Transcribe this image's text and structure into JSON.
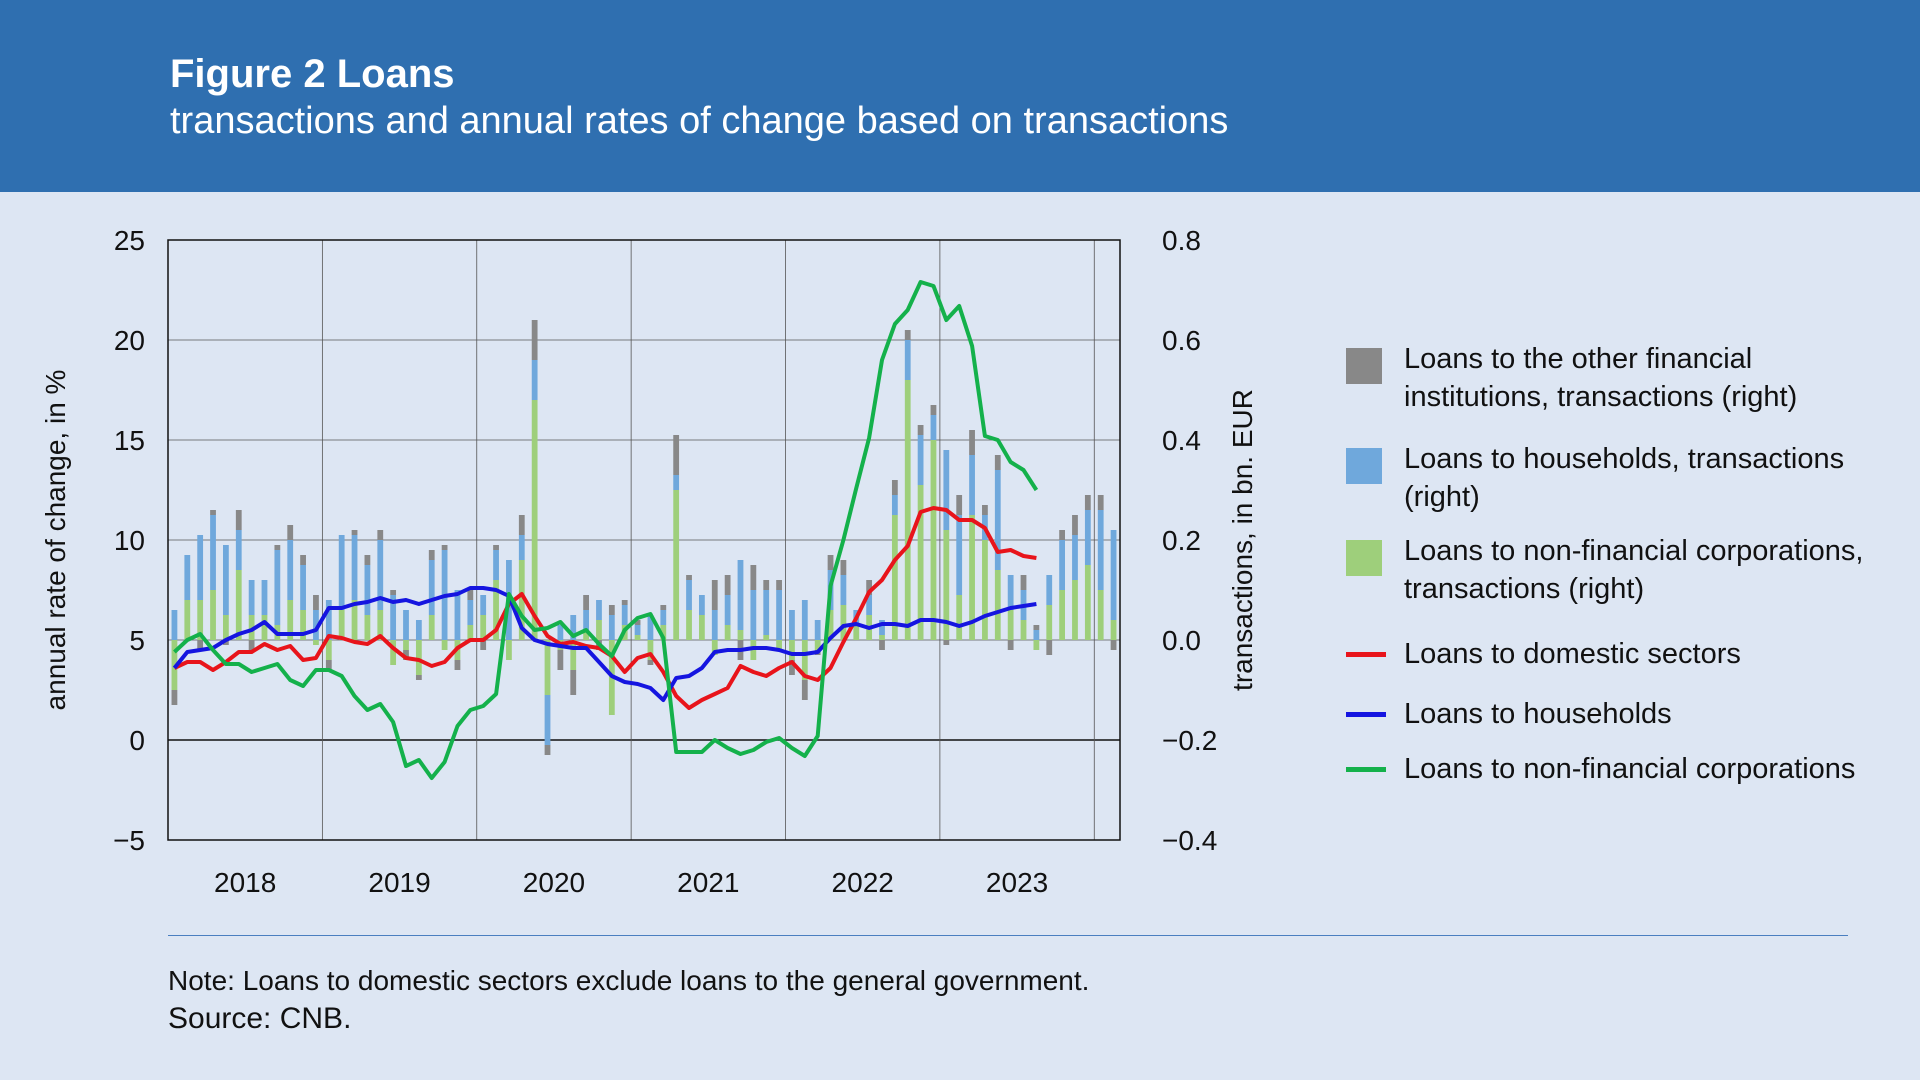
{
  "header": {
    "title": "Figure 2 Loans",
    "subtitle": "transactions and annual rates of change based on transactions"
  },
  "colors": {
    "header_bg": "#2f6fb0",
    "background": "#dde6f3",
    "other_fin": "#888888",
    "households_bar": "#6fa8dc",
    "nfc_bar": "#9ecf7b",
    "domestic_line": "#e8141b",
    "households_line": "#1515e0",
    "nfc_line": "#14b14b"
  },
  "chart_data": {
    "type": "bar+line",
    "ylabel_left": "annual rate of change, in %",
    "ylabel_right": "transactions, in bn. EUR",
    "ylim_left": [
      -5,
      25
    ],
    "yticks_left": [
      "25",
      "20",
      "15",
      "10",
      "5",
      "0",
      "−5"
    ],
    "ylim_right": [
      -0.4,
      0.8
    ],
    "yticks_right": [
      "0.8",
      "0.6",
      "0.4",
      "0.2",
      "0.0",
      "−0.2",
      "−0.4"
    ],
    "x_labels": [
      "2018",
      "2019",
      "2020",
      "2021",
      "2022",
      "2023"
    ],
    "grid": true,
    "legend_position": "right",
    "months_start": "2018-01",
    "bar_series": [
      {
        "name": "Loans to non-financial corporations, transactions (right)",
        "color": "#9ecf7b",
        "values": [
          -0.1,
          0.08,
          0.08,
          0.1,
          0.05,
          0.14,
          0.05,
          0.05,
          0.03,
          0.08,
          0.06,
          -0.01,
          -0.04,
          0.06,
          0.08,
          0.05,
          0.06,
          -0.05,
          -0.02,
          -0.07,
          0.05,
          -0.02,
          -0.04,
          0.03,
          0.05,
          0.12,
          -0.04,
          0.16,
          0.48,
          -0.11,
          -0.02,
          -0.06,
          0.02,
          0.04,
          -0.15,
          0.03,
          0.01,
          -0.04,
          0.03,
          0.3,
          0.06,
          0.05,
          -0.03,
          0.03,
          0.02,
          -0.04,
          0.01,
          -0.02,
          -0.04,
          -0.08,
          -0.02,
          0.06,
          0.07,
          0.03,
          0.05,
          0.01,
          0.25,
          0.52,
          0.31,
          0.4,
          0.22,
          0.09,
          0.25,
          0.2,
          0.14,
          0.06,
          0.04,
          -0.02,
          0.07,
          0.1,
          0.12,
          0.15,
          0.1,
          0.04
        ]
      },
      {
        "name": "Loans to households, transactions (right)",
        "color": "#6fa8dc",
        "values": [
          0.06,
          0.09,
          0.13,
          0.15,
          0.14,
          0.08,
          0.07,
          0.07,
          0.15,
          0.12,
          0.09,
          0.06,
          0.08,
          0.15,
          0.13,
          0.1,
          0.14,
          0.09,
          0.06,
          0.04,
          0.11,
          0.18,
          0.1,
          0.05,
          0.04,
          0.06,
          0.16,
          0.05,
          0.08,
          -0.1,
          0.03,
          0.05,
          0.04,
          0.04,
          0.05,
          0.04,
          0.02,
          0.05,
          0.03,
          0.03,
          0.06,
          0.04,
          0.06,
          0.06,
          0.14,
          0.1,
          0.09,
          0.1,
          0.06,
          0.08,
          0.04,
          0.08,
          0.06,
          0.03,
          0.04,
          0.03,
          0.04,
          0.08,
          0.1,
          0.05,
          0.16,
          0.16,
          0.12,
          0.05,
          0.2,
          0.07,
          0.06,
          0.02,
          0.06,
          0.1,
          0.09,
          0.11,
          0.16,
          0.18
        ]
      },
      {
        "name": "Loans to the other financial institutions, transactions (right)",
        "color": "#888888",
        "values": [
          -0.03,
          0.0,
          -0.02,
          0.01,
          -0.01,
          0.04,
          -0.02,
          0.0,
          0.01,
          0.03,
          0.02,
          0.03,
          -0.02,
          0.0,
          0.01,
          0.02,
          0.02,
          0.01,
          -0.02,
          -0.01,
          0.02,
          0.01,
          -0.02,
          0.02,
          -0.02,
          0.01,
          0.0,
          0.04,
          0.08,
          -0.02,
          -0.04,
          -0.05,
          0.03,
          -0.02,
          0.02,
          0.01,
          0.01,
          -0.01,
          0.01,
          0.08,
          0.01,
          0.0,
          0.06,
          0.04,
          -0.04,
          0.05,
          0.02,
          0.02,
          -0.03,
          -0.04,
          -0.01,
          0.03,
          0.03,
          0.0,
          0.03,
          -0.02,
          0.03,
          0.02,
          0.02,
          0.02,
          -0.01,
          0.04,
          0.05,
          0.02,
          0.03,
          -0.02,
          0.03,
          0.01,
          -0.03,
          0.02,
          0.04,
          0.03,
          0.03,
          -0.02
        ]
      }
    ],
    "line_series": [
      {
        "name": "Loans to domestic sectors",
        "color": "#e8141b",
        "values": [
          3.6,
          3.9,
          3.9,
          3.5,
          3.9,
          4.4,
          4.4,
          4.8,
          4.5,
          4.7,
          4.0,
          4.1,
          5.2,
          5.1,
          4.9,
          4.8,
          5.2,
          4.6,
          4.1,
          4.0,
          3.7,
          3.9,
          4.6,
          5.0,
          5.0,
          5.5,
          6.8,
          7.3,
          6.2,
          5.2,
          4.8,
          4.9,
          4.7,
          4.6,
          4.2,
          3.4,
          4.1,
          4.3,
          3.4,
          2.2,
          1.6,
          2.0,
          2.3,
          2.6,
          3.7,
          3.4,
          3.2,
          3.6,
          3.9,
          3.2,
          3.0,
          3.6,
          4.9,
          6.1,
          7.4,
          8.0,
          9.0,
          9.7,
          11.4,
          11.6,
          11.5,
          11.0,
          11.0,
          10.6,
          9.4,
          9.5,
          9.2,
          9.1
        ]
      },
      {
        "name": "Loans to households",
        "color": "#1515e0",
        "values": [
          3.6,
          4.4,
          4.5,
          4.6,
          5.0,
          5.3,
          5.5,
          5.9,
          5.3,
          5.3,
          5.3,
          5.5,
          6.6,
          6.6,
          6.8,
          6.9,
          7.1,
          6.9,
          7.0,
          6.8,
          7.0,
          7.2,
          7.3,
          7.6,
          7.6,
          7.5,
          7.2,
          5.6,
          5.0,
          4.8,
          4.7,
          4.6,
          4.6,
          3.9,
          3.2,
          2.9,
          2.8,
          2.6,
          2.0,
          3.1,
          3.2,
          3.6,
          4.4,
          4.5,
          4.5,
          4.6,
          4.6,
          4.5,
          4.3,
          4.3,
          4.4,
          5.1,
          5.7,
          5.8,
          5.6,
          5.8,
          5.8,
          5.7,
          6.0,
          6.0,
          5.9,
          5.7,
          5.9,
          6.2,
          6.4,
          6.6,
          6.7,
          6.8
        ]
      },
      {
        "name": "Loans to non-financial corporations",
        "color": "#14b14b",
        "values": [
          4.4,
          5.0,
          5.3,
          4.5,
          3.8,
          3.8,
          3.4,
          3.6,
          3.8,
          3.0,
          2.7,
          3.5,
          3.5,
          3.2,
          2.2,
          1.5,
          1.8,
          0.9,
          -1.3,
          -1.0,
          -1.9,
          -1.1,
          0.7,
          1.5,
          1.7,
          2.3,
          7.3,
          6.2,
          5.5,
          5.6,
          5.9,
          5.2,
          5.5,
          4.8,
          4.2,
          5.5,
          6.1,
          6.3,
          5.1,
          -0.6,
          -0.6,
          -0.6,
          0.0,
          -0.4,
          -0.7,
          -0.5,
          -0.1,
          0.1,
          -0.4,
          -0.8,
          0.2,
          7.7,
          10.0,
          12.6,
          15.1,
          19.0,
          20.8,
          21.5,
          22.9,
          22.7,
          21.0,
          21.7,
          19.7,
          15.2,
          15.0,
          13.9,
          13.5,
          12.5
        ]
      }
    ]
  },
  "legend": [
    {
      "label": "Loans to the other financial institutions, transactions (right)",
      "type": "box",
      "color": "#888888"
    },
    {
      "label": "Loans to households, transactions (right)",
      "type": "box",
      "color": "#6fa8dc"
    },
    {
      "label": "Loans to non-financial corporations, transactions (right)",
      "type": "box",
      "color": "#9ecf7b"
    },
    {
      "label": "Loans to domestic sectors",
      "type": "line",
      "color": "#e8141b"
    },
    {
      "label": "Loans to households",
      "type": "line",
      "color": "#1515e0"
    },
    {
      "label": "Loans to non-financial corporations",
      "type": "line",
      "color": "#14b14b"
    }
  ],
  "footer": {
    "note": "Note: Loans to domestic sectors exclude loans to the general government.",
    "source": "Source: CNB."
  }
}
